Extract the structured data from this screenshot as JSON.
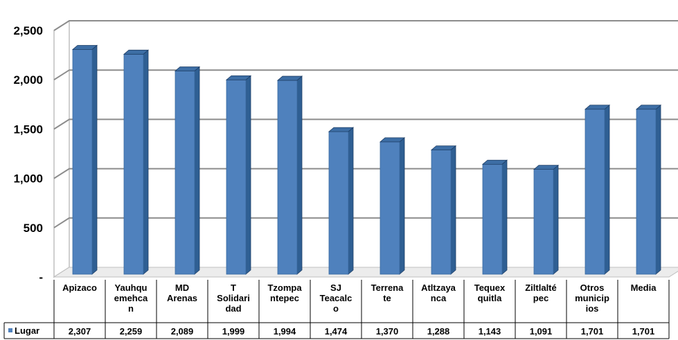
{
  "chart_data": {
    "type": "bar",
    "title": "",
    "xlabel": "",
    "ylabel": "",
    "ylim": [
      0,
      2500
    ],
    "yticks": [
      "-",
      "500",
      "1,000",
      "1,500",
      "2,000",
      "2,500"
    ],
    "grid": true,
    "legend_position": "bottom-left (in data table)",
    "categories": [
      [
        "Apizaco"
      ],
      [
        "Yauhqu",
        "emehca",
        "n"
      ],
      [
        "MD",
        "Arenas"
      ],
      [
        "T",
        "Solidari",
        "dad"
      ],
      [
        "Tzompa",
        "ntepec"
      ],
      [
        "SJ",
        "Teacalc",
        "o"
      ],
      [
        "Terrena",
        "te"
      ],
      [
        "Atltzaya",
        "nca"
      ],
      [
        "Tequex",
        "quitla"
      ],
      [
        "Ziltlalté",
        "pec"
      ],
      [
        "Otros",
        "municip",
        "ios"
      ],
      [
        "Media"
      ]
    ],
    "series": [
      {
        "name": "Lugar",
        "color": "#4F81BD",
        "values": [
          2307,
          2259,
          2089,
          1999,
          1994,
          1474,
          1370,
          1288,
          1143,
          1091,
          1701,
          1701
        ],
        "value_labels": [
          "2,307",
          "2,259",
          "2,089",
          "1,999",
          "1,994",
          "1,474",
          "1,370",
          "1,288",
          "1,143",
          "1,091",
          "1,701",
          "1,701"
        ]
      }
    ]
  }
}
